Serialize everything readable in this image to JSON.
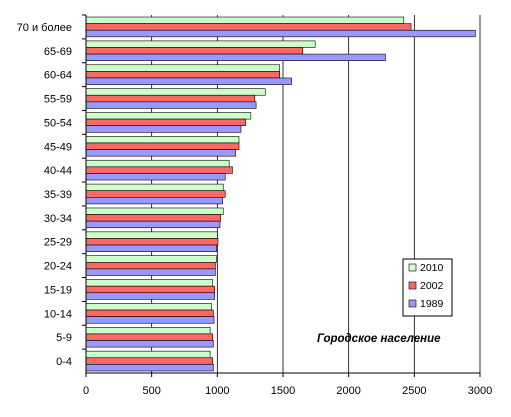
{
  "chart_data": {
    "type": "bar",
    "orientation": "horizontal",
    "categories": [
      "70 и более",
      "65-69",
      "60-64",
      "55-59",
      "50-54",
      "45-49",
      "40-44",
      "35-39",
      "30-34",
      "25-29",
      "20-24",
      "15-19",
      "10-14",
      "5-9",
      "0-4"
    ],
    "series": [
      {
        "name": "2010",
        "color": "#ccffcc",
        "values": [
          2420,
          1745,
          1475,
          1365,
          1255,
          1165,
          1090,
          1045,
          1045,
          1000,
          995,
          965,
          955,
          945,
          945
        ]
      },
      {
        "name": "2002",
        "color": "#ff6666",
        "values": [
          2475,
          1650,
          1475,
          1285,
          1215,
          1165,
          1115,
          1060,
          1025,
          1005,
          985,
          980,
          970,
          965,
          965
        ]
      },
      {
        "name": "1989",
        "color": "#9999ff",
        "values": [
          2965,
          2280,
          1565,
          1295,
          1180,
          1140,
          1060,
          1040,
          1020,
          995,
          985,
          980,
          975,
          970,
          970
        ]
      }
    ],
    "xlim": [
      0,
      3000
    ],
    "xticks": [
      0,
      500,
      1000,
      1500,
      2000,
      2500,
      3000
    ],
    "grid": true,
    "legend_position": "right",
    "annotation": "Городское население"
  }
}
